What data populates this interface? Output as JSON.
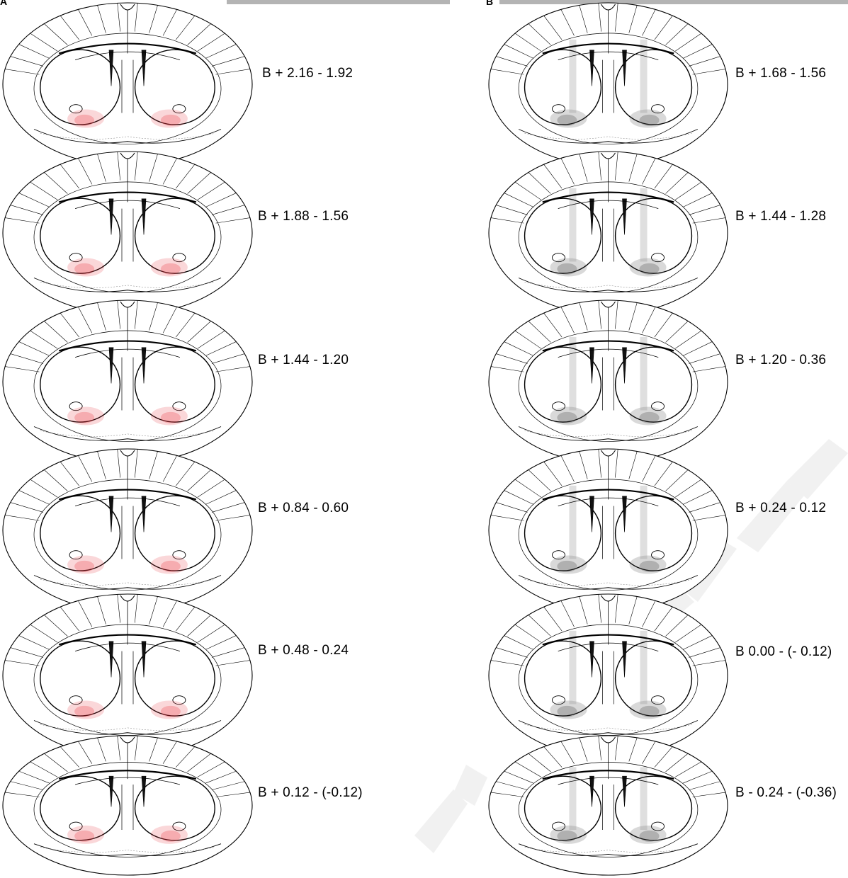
{
  "figure": {
    "panels": [
      {
        "letter": "A",
        "highlight_color": "#e8323c",
        "sections": [
          {
            "label": "B + 2.16 - 1.92"
          },
          {
            "label": "B + 1.88 - 1.56"
          },
          {
            "label": "B + 1.44 - 1.20"
          },
          {
            "label": "B + 0.84 - 0.60"
          },
          {
            "label": "B + 0.48 - 0.24"
          },
          {
            "label": "B + 0.12 - (-0.12)"
          }
        ]
      },
      {
        "letter": "B",
        "highlight_color": "#3a3a3a",
        "sections": [
          {
            "label": "B + 1.68 - 1.56"
          },
          {
            "label": "B + 1.44 - 1.28"
          },
          {
            "label": "B + 1.20 - 0.36"
          },
          {
            "label": "B + 0.24 - 0.12"
          },
          {
            "label": "B 0.00 - (- 0.12)"
          },
          {
            "label": "B - 0.24 - (-0.36)"
          }
        ]
      }
    ],
    "colors": {
      "outline": "#000000",
      "topbar": "#b4b4b4",
      "watermark": "#f0f0f0"
    }
  }
}
